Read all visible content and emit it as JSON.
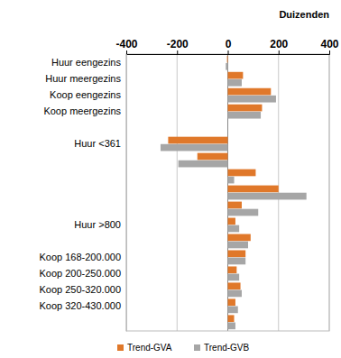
{
  "chart_data": {
    "type": "bar",
    "orientation": "horizontal",
    "x_label": "Duizenden",
    "categories": [
      "Huur eengezins",
      "Huur meergezins",
      "Koop eengezins",
      "Koop meergezins",
      null,
      "Huur <361",
      null,
      null,
      null,
      null,
      "Huur >800",
      null,
      "Koop 168-200.000",
      "Koop 200-250.000",
      "Koop 250-320.000",
      "Koop 320-430.000",
      null
    ],
    "series": [
      {
        "name": "Trend-GVA",
        "color": "#e0782a",
        "values": [
          -3,
          60,
          170,
          135,
          null,
          -235,
          -120,
          110,
          200,
          55,
          30,
          90,
          70,
          35,
          50,
          30,
          25
        ]
      },
      {
        "name": "Trend-GVB",
        "color": "#a6a6a6",
        "values": [
          -8,
          55,
          190,
          130,
          null,
          -265,
          -195,
          25,
          310,
          120,
          45,
          80,
          70,
          45,
          55,
          40,
          30
        ]
      }
    ],
    "xlim": [
      -400,
      400
    ],
    "xticks": [
      -400,
      -200,
      0,
      200,
      400
    ],
    "grid": true,
    "legend": "bottom"
  }
}
